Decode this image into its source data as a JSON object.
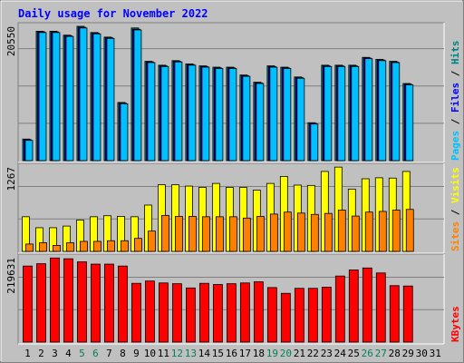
{
  "chart_data": {
    "title": "Daily usage for November 2022",
    "type": "bar",
    "days": [
      "1",
      "2",
      "3",
      "4",
      "5",
      "6",
      "7",
      "8",
      "9",
      "10",
      "11",
      "12",
      "13",
      "14",
      "15",
      "16",
      "17",
      "18",
      "19",
      "20",
      "21",
      "22",
      "23",
      "24",
      "25",
      "26",
      "27",
      "28",
      "29",
      "30",
      "31"
    ],
    "weekend_days": [
      "5",
      "6",
      "12",
      "13",
      "19",
      "20",
      "26",
      "27"
    ],
    "panels": [
      {
        "name": "hits-files-pages",
        "ymax_label": "20550",
        "ymax": 20550,
        "right_label": [
          {
            "text": "Pages",
            "color": "#00c0ff"
          },
          {
            "text": " / ",
            "color": "#000000"
          },
          {
            "text": "Files",
            "color": "#0000ff"
          },
          {
            "text": " / ",
            "color": "#000000"
          },
          {
            "text": "Hits",
            "color": "#008080"
          }
        ],
        "series": [
          {
            "name": "Hits",
            "color": "#008080",
            "values": [
              3300,
              19800,
              19800,
              19200,
              20550,
              19600,
              18900,
              8900,
              20300,
              15200,
              14600,
              15300,
              14800,
              14500,
              14300,
              14300,
              13100,
              12000,
              14500,
              14300,
              12800,
              5800,
              14600,
              14600,
              14600,
              15800,
              15500,
              15200,
              11800,
              0,
              0
            ]
          },
          {
            "name": "Files",
            "color": "#0000ff",
            "values": [
              3200,
              19700,
              19700,
              19100,
              20400,
              19500,
              18800,
              8800,
              20100,
              15100,
              14500,
              15200,
              14700,
              14400,
              14200,
              14200,
              13000,
              11900,
              14400,
              14200,
              12700,
              5700,
              14500,
              14500,
              14500,
              15700,
              15400,
              15100,
              11700,
              0,
              0
            ]
          },
          {
            "name": "Pages",
            "color": "#00c0ff",
            "values": [
              3100,
              19600,
              19600,
              19000,
              20300,
              19400,
              18700,
              8700,
              20000,
              15000,
              14400,
              15100,
              14600,
              14300,
              14100,
              14100,
              12900,
              11800,
              14300,
              14100,
              12600,
              5600,
              14400,
              14400,
              14400,
              15600,
              15300,
              15000,
              11600,
              0,
              0
            ]
          }
        ]
      },
      {
        "name": "visits-sites",
        "ymax_label": "1267",
        "ymax": 1267,
        "right_label": [
          {
            "text": "Sites",
            "color": "#ff8000"
          },
          {
            "text": " / ",
            "color": "#000000"
          },
          {
            "text": "Visits",
            "color": "#ffff00"
          }
        ],
        "series": [
          {
            "name": "Visits",
            "color": "#ffff00",
            "values": [
              520,
              355,
              355,
              380,
              470,
              520,
              535,
              525,
              520,
              695,
              1000,
              1000,
              980,
              960,
              1020,
              960,
              960,
              920,
              1020,
              1125,
              995,
              990,
              1200,
              1265,
              935,
              1090,
              1105,
              1100,
              1200,
              0,
              0
            ]
          },
          {
            "name": "Sites",
            "color": "#ff8000",
            "values": [
              110,
              130,
              90,
              130,
              150,
              150,
              160,
              160,
              195,
              305,
              540,
              525,
              525,
              520,
              520,
              520,
              500,
              525,
              560,
              590,
              575,
              555,
              570,
              620,
              530,
              590,
              600,
              620,
              630,
              0,
              0
            ]
          }
        ]
      },
      {
        "name": "kbytes",
        "ymax_label": "219631",
        "ymax": 219631,
        "right_label": [
          {
            "text": "KBytes",
            "color": "#ff0000"
          }
        ],
        "series": [
          {
            "name": "KBytes",
            "color": "#ff0000",
            "values": [
              198000,
              204000,
              219000,
              217000,
              209000,
              203000,
              203000,
              198000,
              153000,
              159000,
              154000,
              152000,
              141000,
              153000,
              150000,
              152000,
              154000,
              157000,
              142000,
              127000,
              140000,
              140000,
              143000,
              172000,
              188000,
              193000,
              180000,
              147000,
              146000,
              0,
              0
            ]
          }
        ]
      }
    ]
  }
}
